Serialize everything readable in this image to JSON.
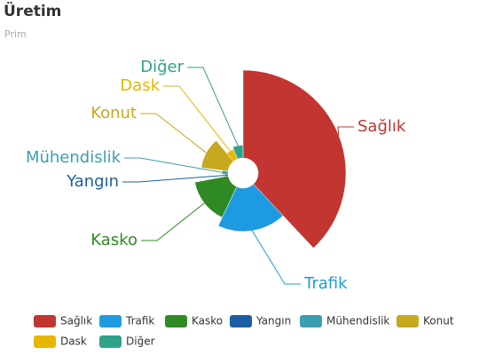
{
  "chart_data": {
    "type": "pie",
    "rose_type": "radius",
    "title": "Üretim",
    "subtitle": "Prim",
    "categories": [
      "Sağlık",
      "Trafik",
      "Kasko",
      "Yangın",
      "Mühendislik",
      "Konut",
      "Dask",
      "Diğer"
    ],
    "values": [
      380,
      190,
      150,
      20,
      30,
      120,
      50,
      60
    ],
    "colors": [
      "#c23531",
      "#1e9be0",
      "#2f8a23",
      "#1a5fa6",
      "#3a9fb0",
      "#c8a81e",
      "#e6b600",
      "#2fa38a"
    ]
  }
}
